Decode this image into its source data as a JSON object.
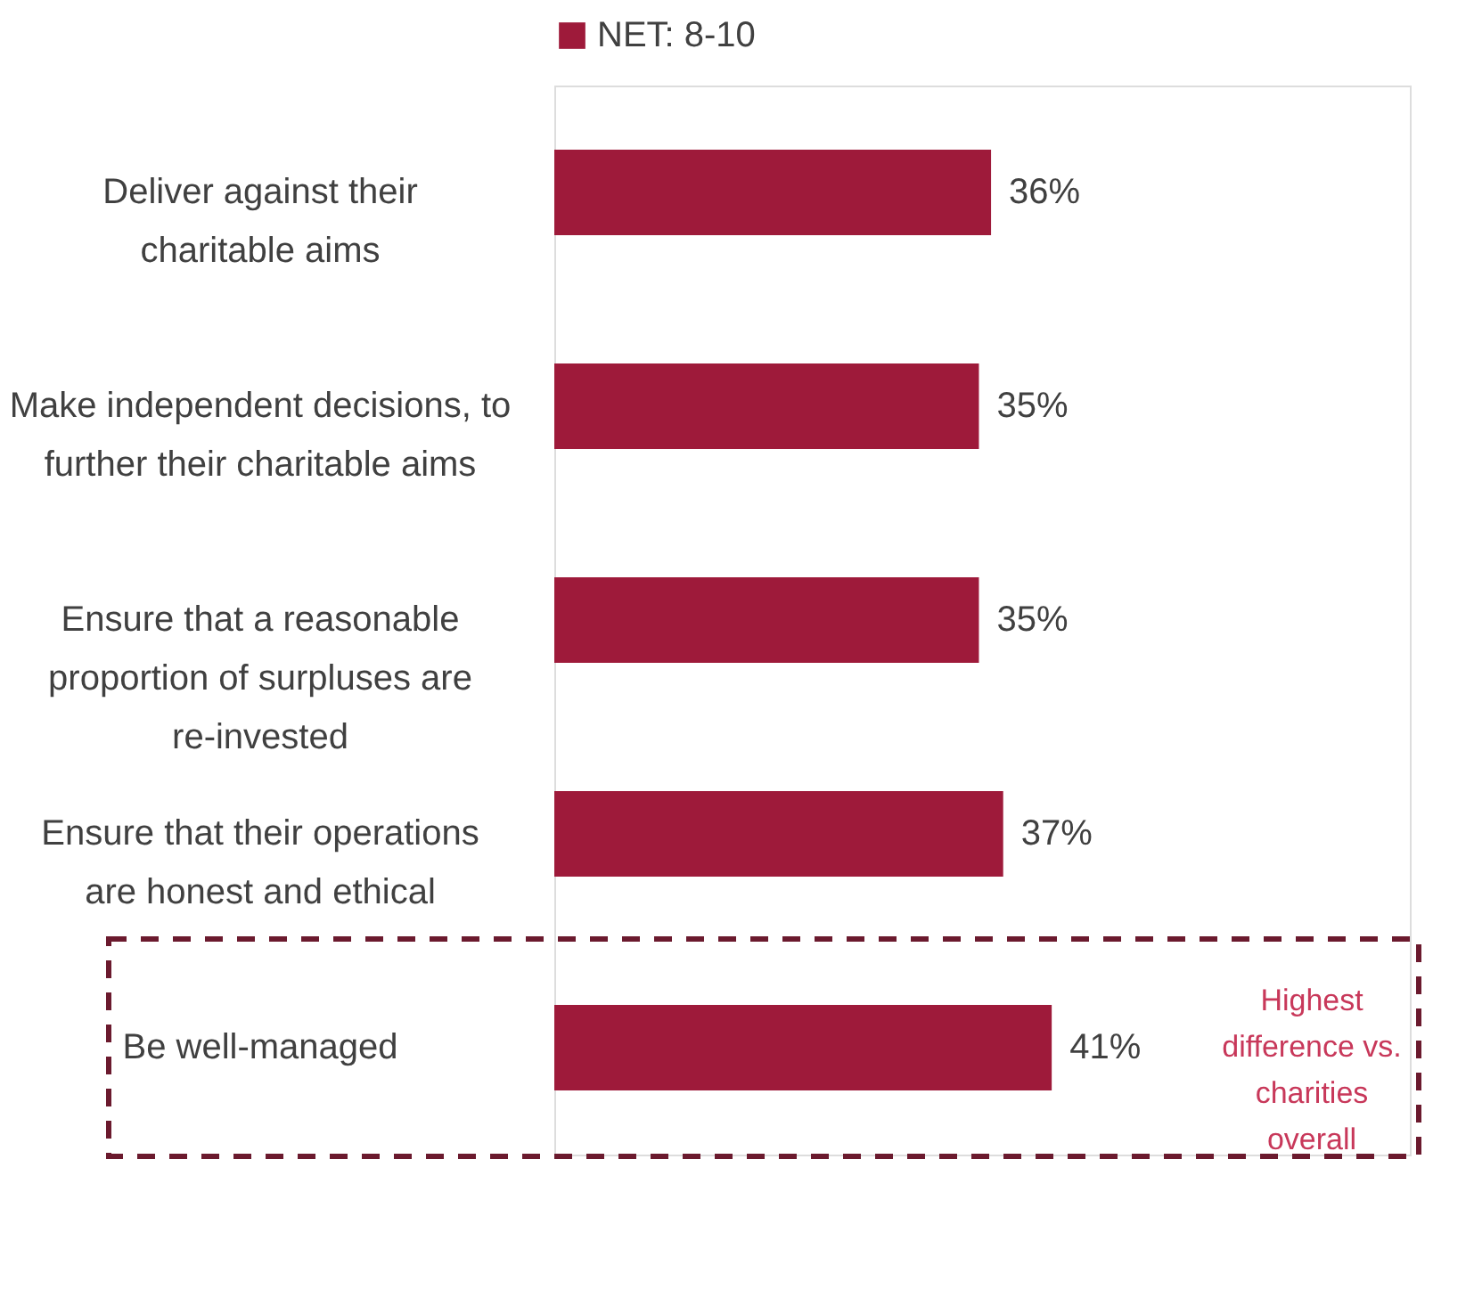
{
  "chart_data": {
    "type": "bar",
    "orientation": "horizontal",
    "categories": [
      "Deliver against their charitable aims",
      "Make independent decisions, to further their charitable aims",
      "Ensure that a reasonable proportion of surpluses are re-invested",
      "Ensure that their operations are honest and ethical",
      "Be well-managed"
    ],
    "series": [
      {
        "name": "NET: 8-10",
        "color": "#9e1a3a",
        "values": [
          36,
          35,
          35,
          37,
          41
        ],
        "value_labels": [
          "36%",
          "35%",
          "35%",
          "37%",
          "41%"
        ]
      }
    ],
    "legend": "top",
    "annotations": [
      "Highest difference vs. charities overall"
    ]
  }
}
